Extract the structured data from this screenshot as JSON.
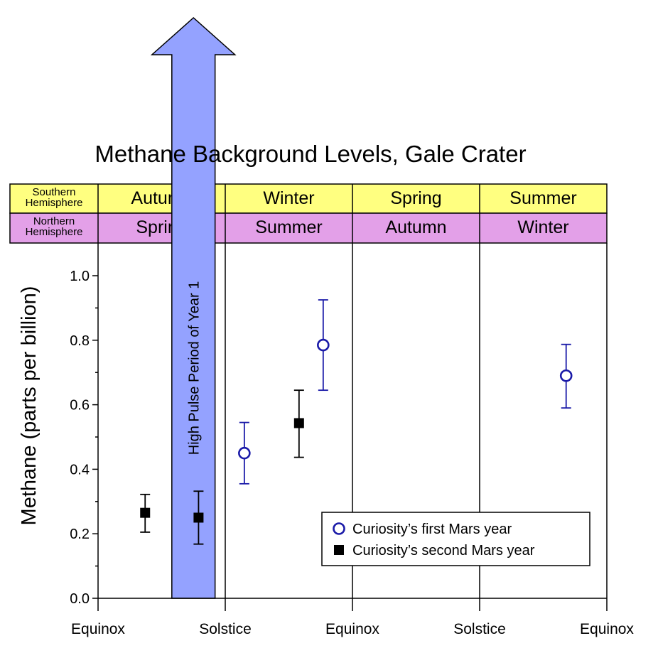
{
  "chart_data": {
    "type": "scatter",
    "title": "Methane Background Levels, Gale Crater",
    "ylabel": "Methane (parts per billion)",
    "xlabel": "",
    "ylim": [
      0,
      1.0
    ],
    "yticks": [
      "0.0",
      "0.2",
      "0.4",
      "0.6",
      "0.8",
      "1.0"
    ],
    "xlim": [
      0,
      4
    ],
    "x_ticks": [
      {
        "x": 0,
        "label": "Equinox"
      },
      {
        "x": 1,
        "label": "Solstice"
      },
      {
        "x": 2,
        "label": "Equinox"
      },
      {
        "x": 3,
        "label": "Solstice"
      },
      {
        "x": 4,
        "label": "Equinox"
      }
    ],
    "seasons": {
      "southern_label": "Southern\nHemisphere",
      "northern_label": "Northern\nHemisphere",
      "southern": [
        "Autumn",
        "Winter",
        "Spring",
        "Summer"
      ],
      "northern": [
        "Spring",
        "Summer",
        "Autumn",
        "Winter"
      ],
      "southern_color": "#ffff80",
      "northern_color": "#e3a0e8"
    },
    "high_pulse_period": {
      "label": "High Pulse Period of Year 1",
      "x_start": 0.58,
      "x_end": 0.92,
      "color": "#94a2ff"
    },
    "series": [
      {
        "name": "Curiosity’s first Mars year",
        "marker": "open-circle",
        "color": "#1a1aa8",
        "points": [
          {
            "x": 1.15,
            "y": 0.45,
            "err_low": 0.355,
            "err_high": 0.545
          },
          {
            "x": 1.77,
            "y": 0.785,
            "err_low": 0.645,
            "err_high": 0.925
          },
          {
            "x": 3.68,
            "y": 0.69,
            "err_low": 0.59,
            "err_high": 0.787
          }
        ]
      },
      {
        "name": "Curiosity’s second Mars year",
        "marker": "filled-square",
        "color": "#000000",
        "points": [
          {
            "x": 0.37,
            "y": 0.265,
            "err_low": 0.205,
            "err_high": 0.322
          },
          {
            "x": 0.79,
            "y": 0.25,
            "err_low": 0.168,
            "err_high": 0.332
          },
          {
            "x": 1.58,
            "y": 0.543,
            "err_low": 0.437,
            "err_high": 0.645
          }
        ]
      }
    ],
    "legend_position": "bottom-right",
    "grid": false
  }
}
